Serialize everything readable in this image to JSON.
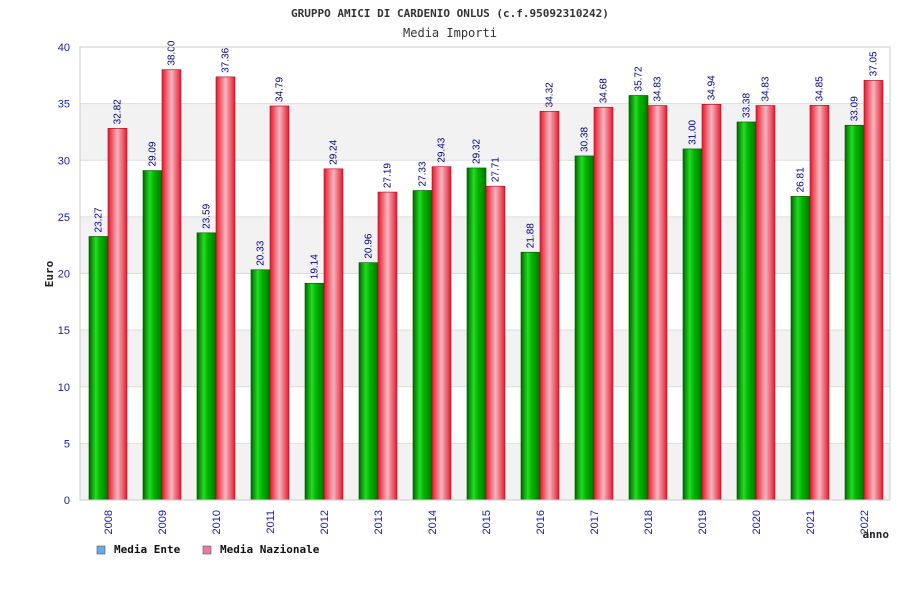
{
  "chart_data": {
    "type": "bar",
    "title": "GRUPPO AMICI DI CARDENIO ONLUS (c.f.95092310242)",
    "subtitle": "Media Importi",
    "xlabel": "anno",
    "ylabel": "Euro",
    "ylim": [
      0,
      40
    ],
    "yticks": [
      "0",
      "5",
      "10",
      "15",
      "20",
      "25",
      "30",
      "35",
      "40"
    ],
    "grid": true,
    "legend_position": "bottom-left",
    "categories": [
      "2008",
      "2009",
      "2010",
      "2011",
      "2012",
      "2013",
      "2014",
      "2015",
      "2016",
      "2017",
      "2018",
      "2019",
      "2020",
      "2021",
      "2022"
    ],
    "series": [
      {
        "name": "Media Ente",
        "color": "#00b000",
        "legend_color": "#6fa8e8",
        "values": [
          23.27,
          29.09,
          23.59,
          20.33,
          19.14,
          20.96,
          27.33,
          29.32,
          21.88,
          30.38,
          35.72,
          31.0,
          33.38,
          26.81,
          33.09
        ],
        "labels": [
          "23.27",
          "29.09",
          "23.59",
          "20.33",
          "19.14",
          "20.96",
          "27.33",
          "29.32",
          "21.88",
          "30.38",
          "35.72",
          "31.00",
          "33.38",
          "26.81",
          "33.09"
        ]
      },
      {
        "name": "Media Nazionale",
        "color": "#e8192c",
        "legend_color": "#e87aa8",
        "values": [
          32.82,
          38.0,
          37.36,
          34.79,
          29.24,
          27.19,
          29.43,
          27.71,
          34.32,
          34.68,
          34.83,
          34.94,
          34.83,
          34.85,
          37.05
        ],
        "labels": [
          "32.82",
          "38.00",
          "37.36",
          "34.79",
          "29.24",
          "27.19",
          "29.43",
          "27.71",
          "34.32",
          "34.68",
          "34.83",
          "34.94",
          "34.83",
          "34.85",
          "37.05"
        ]
      }
    ]
  }
}
